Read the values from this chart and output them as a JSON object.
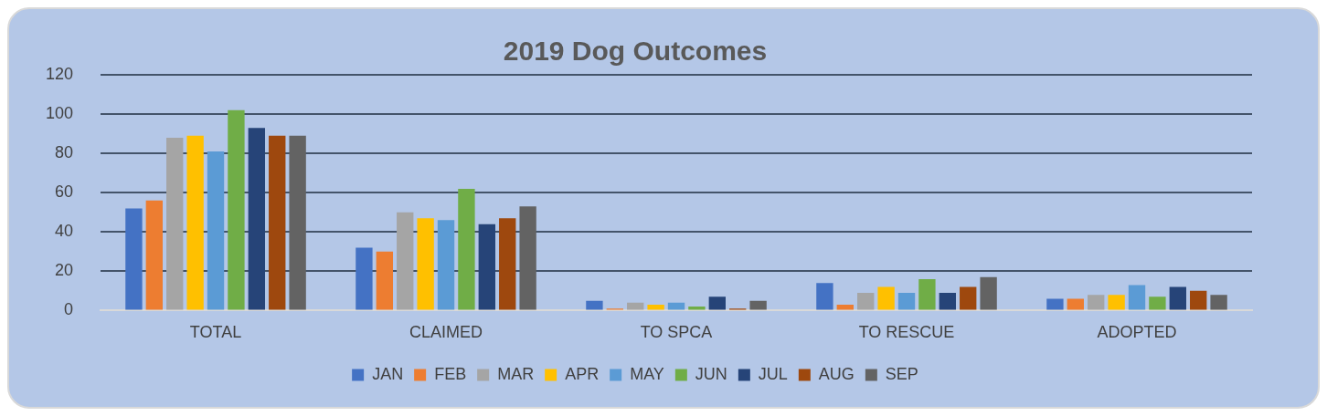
{
  "chart_data": {
    "type": "bar",
    "title": "2019 Dog Outcomes",
    "categories": [
      "TOTAL",
      "CLAIMED",
      "TO SPCA",
      "TO RESCUE",
      "ADOPTED"
    ],
    "series": [
      {
        "name": "JAN",
        "color": "#4472c4",
        "values": [
          52,
          32,
          5,
          14,
          6
        ]
      },
      {
        "name": "FEB",
        "color": "#ed7d31",
        "values": [
          56,
          30,
          1,
          3,
          6
        ]
      },
      {
        "name": "MAR",
        "color": "#a5a5a5",
        "values": [
          88,
          50,
          4,
          9,
          8
        ]
      },
      {
        "name": "APR",
        "color": "#ffc000",
        "values": [
          89,
          47,
          3,
          12,
          8
        ]
      },
      {
        "name": "MAY",
        "color": "#5b9bd5",
        "values": [
          81,
          46,
          4,
          9,
          13
        ]
      },
      {
        "name": "JUN",
        "color": "#70ad47",
        "values": [
          102,
          62,
          2,
          16,
          7
        ]
      },
      {
        "name": "JUL",
        "color": "#264478",
        "values": [
          93,
          44,
          7,
          9,
          12
        ]
      },
      {
        "name": "AUG",
        "color": "#9e480e",
        "values": [
          89,
          47,
          1,
          12,
          10
        ]
      },
      {
        "name": "SEP",
        "color": "#636363",
        "values": [
          89,
          53,
          5,
          17,
          8
        ]
      }
    ],
    "ylim": [
      0,
      120
    ],
    "yticks": [
      0,
      20,
      40,
      60,
      80,
      100,
      120
    ],
    "grid": "y",
    "legend": "bottom"
  }
}
